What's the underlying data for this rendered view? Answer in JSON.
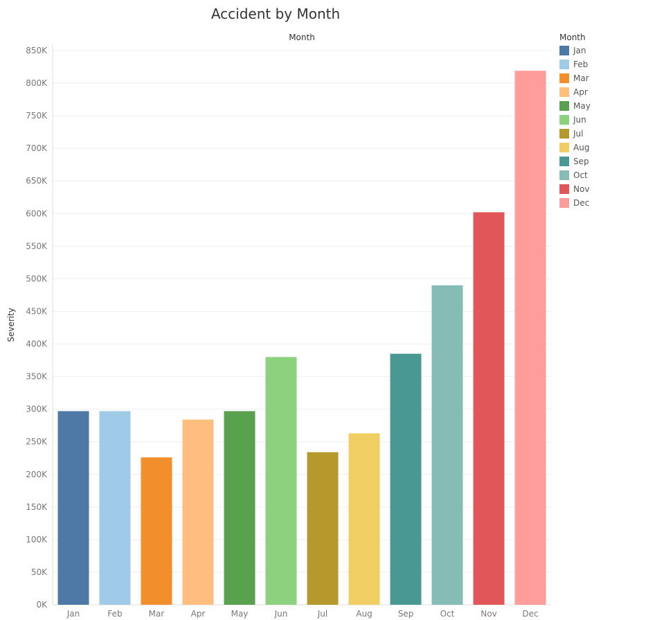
{
  "chart_data": {
    "type": "bar",
    "title": "Accident by Month",
    "column_header": "Month",
    "ylabel": "Severity",
    "xlabel": "",
    "ylim": [
      0,
      850000
    ],
    "y_ticks": [
      0,
      50000,
      100000,
      150000,
      200000,
      250000,
      300000,
      350000,
      400000,
      450000,
      500000,
      550000,
      600000,
      650000,
      700000,
      750000,
      800000,
      850000
    ],
    "y_tick_labels": [
      "0K",
      "50K",
      "100K",
      "150K",
      "200K",
      "250K",
      "300K",
      "350K",
      "400K",
      "450K",
      "500K",
      "550K",
      "600K",
      "650K",
      "700K",
      "750K",
      "800K",
      "850K"
    ],
    "categories": [
      "Jan",
      "Feb",
      "Mar",
      "Apr",
      "May",
      "Jun",
      "Jul",
      "Aug",
      "Sep",
      "Oct",
      "Nov",
      "Dec"
    ],
    "values": [
      297000,
      297000,
      226000,
      284000,
      297000,
      380000,
      234000,
      263000,
      385000,
      490000,
      602000,
      819000
    ],
    "colors": [
      "#4e79a7",
      "#a0cbe8",
      "#f28e2b",
      "#ffbe7d",
      "#59a14f",
      "#8cd17d",
      "#b6992d",
      "#f1ce63",
      "#499894",
      "#86bcb6",
      "#e15759",
      "#ff9d9a"
    ],
    "grid": true,
    "legend": {
      "title": "Month",
      "placement": "right",
      "entries": [
        "Jan",
        "Feb",
        "Mar",
        "Apr",
        "May",
        "Jun",
        "Jul",
        "Aug",
        "Sep",
        "Oct",
        "Nov",
        "Dec"
      ]
    }
  }
}
